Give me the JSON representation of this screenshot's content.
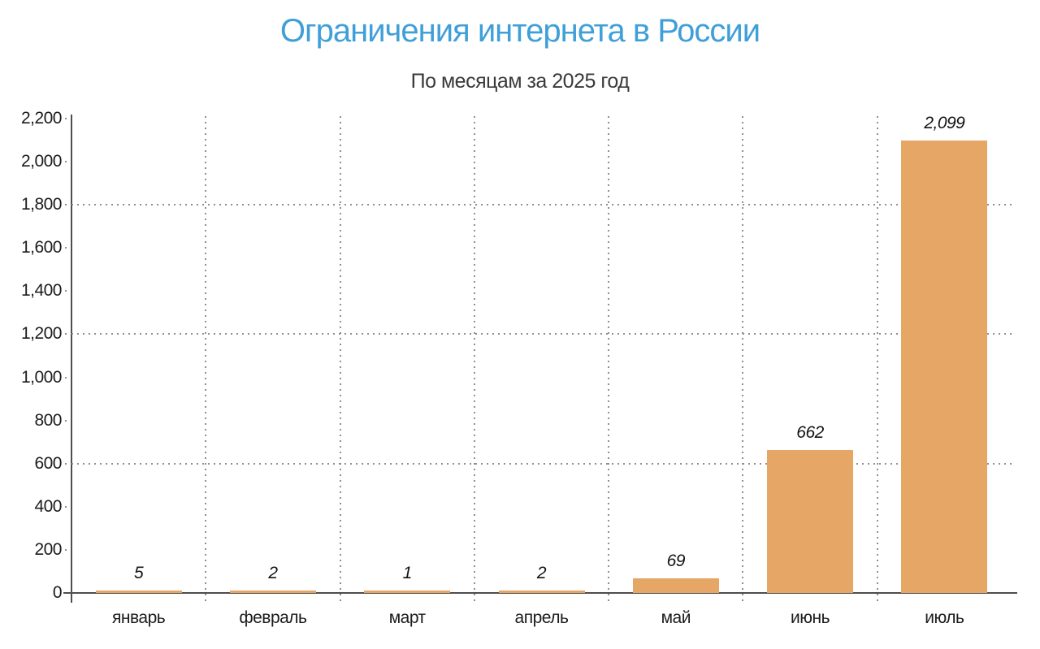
{
  "chart_data": {
    "type": "bar",
    "title": "Ограничения интернета в России",
    "subtitle": "По месяцам за 2025 год",
    "categories": [
      "январь",
      "февраль",
      "март",
      "апрель",
      "май",
      "июнь",
      "июль"
    ],
    "values": [
      5,
      2,
      1,
      2,
      69,
      662,
      2099
    ],
    "value_labels": [
      "5",
      "2",
      "1",
      "2",
      "69",
      "662",
      "2,099"
    ],
    "ytick_labels": [
      "0",
      "200",
      "400",
      "600",
      "800",
      "1,000",
      "1,200",
      "1,400",
      "1,600",
      "1,800",
      "2,000",
      "2,200"
    ],
    "ylim": [
      0,
      2200
    ],
    "ytick_step": 200,
    "gridline_values": [
      600,
      1200,
      1800
    ],
    "grid_style": "dotted",
    "legend": "none",
    "xlabel": "",
    "ylabel": "",
    "bar_color": "#e5a666",
    "title_color": "#3f9fd8",
    "axis_color": "#4d4d4d",
    "grid_color": "#8f8f8f"
  }
}
